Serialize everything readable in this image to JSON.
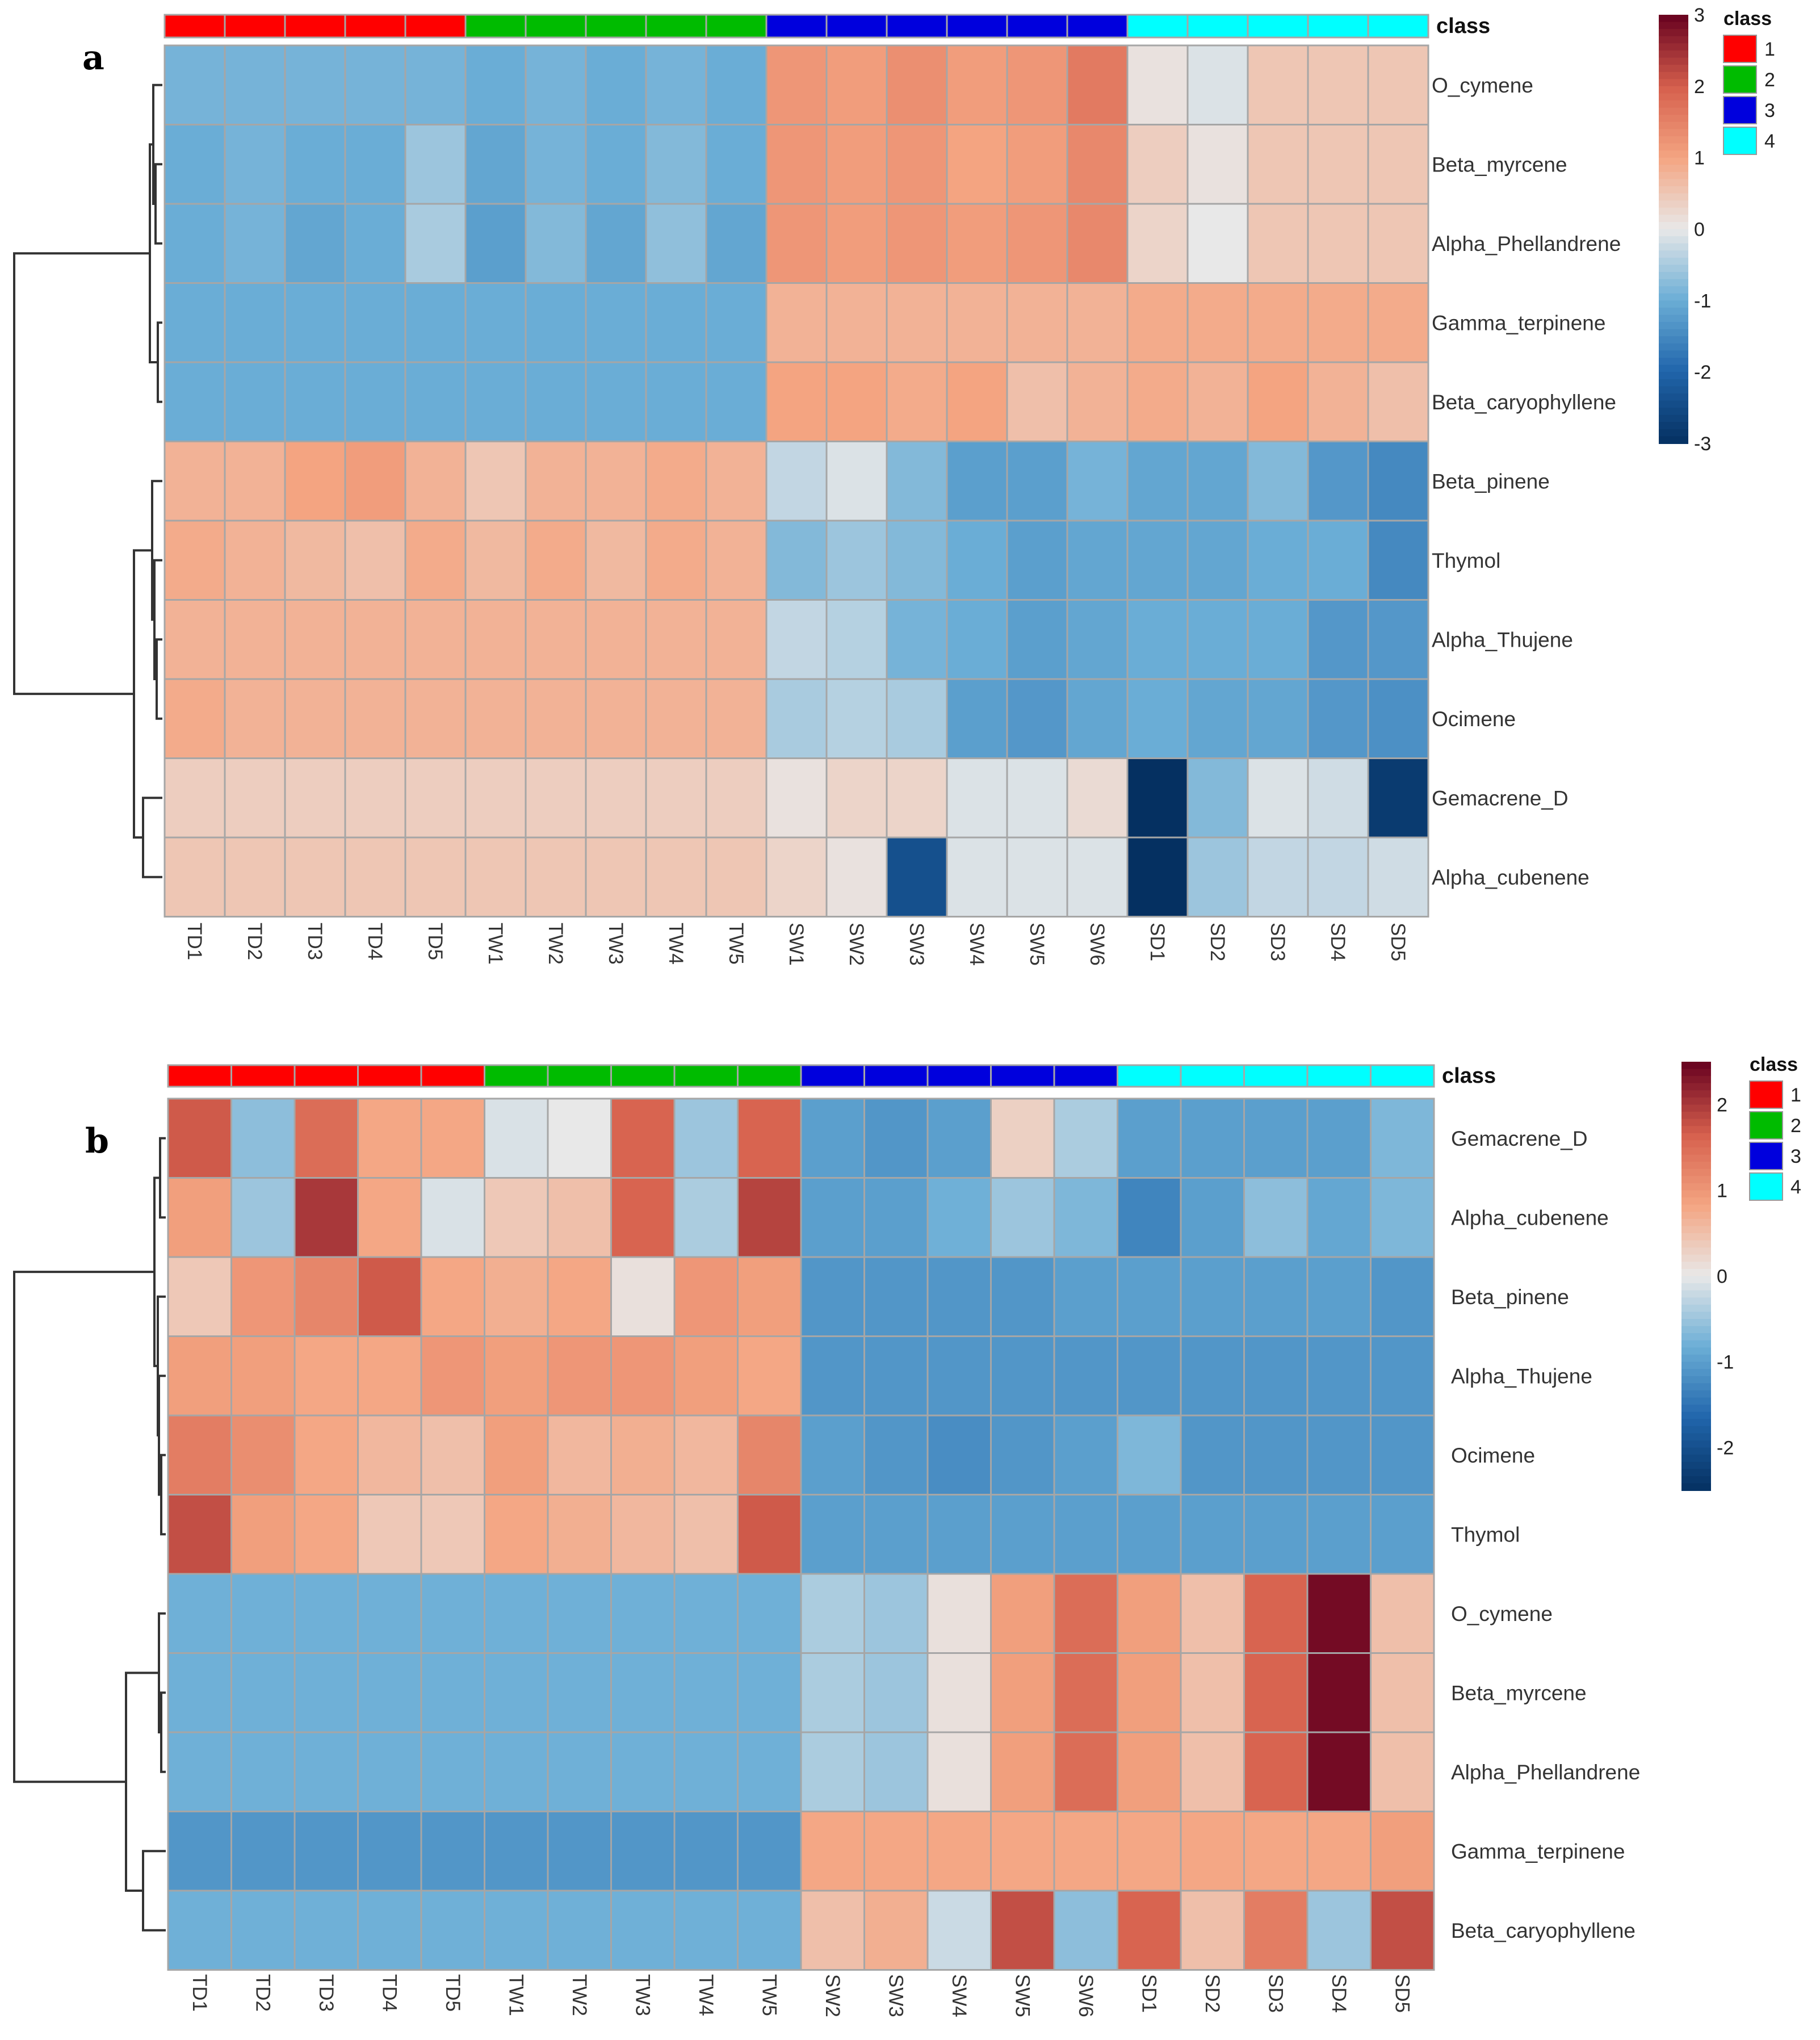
{
  "chart_data": [
    {
      "type": "heatmap",
      "panel": "a",
      "columns": [
        "TD1",
        "TD2",
        "TD3",
        "TD4",
        "TD5",
        "TW1",
        "TW2",
        "TW3",
        "TW4",
        "TW5",
        "SW1",
        "SW2",
        "SW3",
        "SW4",
        "SW5",
        "SW6",
        "SD1",
        "SD2",
        "SD3",
        "SD4",
        "SD5"
      ],
      "column_classes": [
        1,
        1,
        1,
        1,
        1,
        2,
        2,
        2,
        2,
        2,
        3,
        3,
        3,
        3,
        3,
        3,
        4,
        4,
        4,
        4,
        4
      ],
      "rows": [
        "O_cymene",
        "Beta_myrcene",
        "Alpha_Phellandrene",
        "Gamma_terpinene",
        "Beta_caryophyllene",
        "Beta_pinene",
        "Thymol",
        "Alpha_Thujene",
        "Ocimene",
        "Gemacrene_D",
        "Alpha_cubenene"
      ],
      "values": [
        [
          -0.9,
          -0.9,
          -0.9,
          -0.9,
          -0.9,
          -1.0,
          -0.9,
          -1.0,
          -0.9,
          -1.0,
          1.2,
          1.1,
          1.3,
          1.1,
          1.2,
          1.6,
          0.1,
          -0.1,
          0.5,
          0.5,
          0.5
        ],
        [
          -1.0,
          -0.9,
          -1.0,
          -1.0,
          -0.6,
          -1.1,
          -0.9,
          -1.0,
          -0.8,
          -1.0,
          1.2,
          1.1,
          1.2,
          1.0,
          1.1,
          1.4,
          0.4,
          0.1,
          0.5,
          0.5,
          0.5
        ],
        [
          -1.0,
          -0.9,
          -1.1,
          -1.0,
          -0.5,
          -1.2,
          -0.8,
          -1.1,
          -0.7,
          -1.1,
          1.2,
          1.1,
          1.2,
          1.1,
          1.2,
          1.4,
          0.3,
          0.0,
          0.5,
          0.5,
          0.5
        ],
        [
          -1.0,
          -1.0,
          -1.0,
          -1.0,
          -1.0,
          -1.0,
          -1.0,
          -1.0,
          -1.0,
          -1.0,
          0.8,
          0.8,
          0.8,
          0.8,
          0.8,
          0.8,
          0.9,
          0.9,
          0.9,
          0.9,
          0.9
        ],
        [
          -1.0,
          -1.0,
          -1.0,
          -1.0,
          -1.0,
          -1.0,
          -1.0,
          -1.0,
          -1.0,
          -1.0,
          1.0,
          1.0,
          0.9,
          1.0,
          0.6,
          0.8,
          0.9,
          0.8,
          1.0,
          0.8,
          0.6
        ],
        [
          0.8,
          0.8,
          1.0,
          1.1,
          0.8,
          0.5,
          0.8,
          0.8,
          0.9,
          0.8,
          -0.3,
          -0.1,
          -0.8,
          -1.2,
          -1.2,
          -0.9,
          -1.1,
          -1.1,
          -0.8,
          -1.3,
          -1.5
        ],
        [
          0.9,
          0.8,
          0.7,
          0.6,
          0.9,
          0.7,
          0.9,
          0.7,
          0.9,
          0.8,
          -0.8,
          -0.6,
          -0.8,
          -1.0,
          -1.2,
          -1.1,
          -1.1,
          -1.1,
          -1.0,
          -1.0,
          -1.5
        ],
        [
          0.8,
          0.8,
          0.8,
          0.8,
          0.8,
          0.8,
          0.8,
          0.8,
          0.8,
          0.8,
          -0.3,
          -0.4,
          -0.9,
          -1.0,
          -1.2,
          -1.1,
          -1.0,
          -1.0,
          -1.0,
          -1.3,
          -1.3
        ],
        [
          0.9,
          0.8,
          0.8,
          0.8,
          0.8,
          0.8,
          0.8,
          0.8,
          0.8,
          0.8,
          -0.5,
          -0.4,
          -0.5,
          -1.2,
          -1.3,
          -1.1,
          -1.0,
          -1.1,
          -1.1,
          -1.3,
          -1.4
        ],
        [
          0.4,
          0.4,
          0.4,
          0.4,
          0.4,
          0.4,
          0.4,
          0.4,
          0.4,
          0.4,
          0.1,
          0.3,
          0.3,
          -0.1,
          -0.1,
          0.2,
          -3.0,
          -0.8,
          -0.1,
          -0.2,
          -2.8
        ],
        [
          0.5,
          0.5,
          0.5,
          0.5,
          0.5,
          0.5,
          0.5,
          0.5,
          0.5,
          0.5,
          0.3,
          0.1,
          -2.4,
          -0.1,
          -0.1,
          -0.1,
          -3.2,
          -0.6,
          -0.3,
          -0.3,
          -0.2
        ]
      ],
      "colorbar": {
        "min": -3,
        "max": 3,
        "ticks": [
          3,
          2,
          1,
          0,
          -1,
          -2,
          -3
        ]
      },
      "legend": {
        "title": "class",
        "entries": [
          "1",
          "2",
          "3",
          "4"
        ]
      },
      "class_label": "class"
    },
    {
      "type": "heatmap",
      "panel": "b",
      "columns": [
        "TD1",
        "TD2",
        "TD3",
        "TD4",
        "TD5",
        "TW1",
        "TW2",
        "TW3",
        "TW4",
        "TW5",
        "SW2",
        "SW3",
        "SW4",
        "SW5",
        "SW6",
        "SD1",
        "SD2",
        "SD3",
        "SD4",
        "SD5"
      ],
      "column_classes": [
        1,
        1,
        1,
        1,
        1,
        2,
        2,
        2,
        2,
        2,
        3,
        3,
        3,
        3,
        3,
        4,
        4,
        4,
        4,
        4
      ],
      "rows": [
        "Gemacrene_D",
        "Alpha_cubenene",
        "Beta_pinene",
        "Alpha_Thujene",
        "Ocimene",
        "Thymol",
        "O_cymene",
        "Beta_myrcene",
        "Alpha_Phellandrene",
        "Gamma_terpinene",
        "Beta_caryophyllene"
      ],
      "values": [
        [
          1.7,
          -0.6,
          1.5,
          0.8,
          0.8,
          -0.1,
          0.0,
          1.6,
          -0.5,
          1.6,
          -1.0,
          -1.1,
          -1.0,
          0.3,
          -0.4,
          -1.0,
          -1.0,
          -1.0,
          -1.0,
          -0.7
        ],
        [
          0.9,
          -0.5,
          2.0,
          0.8,
          -0.1,
          0.4,
          0.5,
          1.6,
          -0.4,
          1.9,
          -1.0,
          -1.0,
          -0.8,
          -0.5,
          -0.7,
          -1.3,
          -1.0,
          -0.6,
          -0.9,
          -0.7
        ],
        [
          0.4,
          1.0,
          1.2,
          1.7,
          0.8,
          0.7,
          0.8,
          0.1,
          1.0,
          0.9,
          -1.1,
          -1.1,
          -1.1,
          -1.1,
          -1.0,
          -1.0,
          -1.0,
          -1.0,
          -1.0,
          -1.1
        ],
        [
          0.9,
          0.9,
          0.8,
          0.8,
          1.0,
          0.9,
          1.0,
          1.0,
          0.9,
          0.8,
          -1.1,
          -1.1,
          -1.1,
          -1.1,
          -1.1,
          -1.1,
          -1.1,
          -1.1,
          -1.1,
          -1.1
        ],
        [
          1.3,
          1.1,
          0.8,
          0.6,
          0.5,
          0.9,
          0.6,
          0.7,
          0.6,
          1.2,
          -1.0,
          -1.1,
          -1.2,
          -1.1,
          -1.0,
          -0.7,
          -1.1,
          -1.1,
          -1.1,
          -1.1
        ],
        [
          1.8,
          0.9,
          0.8,
          0.4,
          0.4,
          0.8,
          0.7,
          0.6,
          0.5,
          1.7,
          -1.0,
          -1.0,
          -1.0,
          -1.0,
          -1.0,
          -1.0,
          -1.0,
          -1.0,
          -1.0,
          -1.0
        ],
        [
          -0.8,
          -0.8,
          -0.8,
          -0.8,
          -0.8,
          -0.8,
          -0.8,
          -0.8,
          -0.8,
          -0.8,
          -0.4,
          -0.5,
          0.1,
          0.9,
          1.5,
          0.9,
          0.5,
          1.6,
          2.4,
          0.5
        ],
        [
          -0.8,
          -0.8,
          -0.8,
          -0.8,
          -0.8,
          -0.8,
          -0.8,
          -0.8,
          -0.8,
          -0.8,
          -0.4,
          -0.5,
          0.1,
          0.9,
          1.5,
          0.9,
          0.5,
          1.6,
          2.4,
          0.5
        ],
        [
          -0.8,
          -0.8,
          -0.8,
          -0.8,
          -0.8,
          -0.8,
          -0.8,
          -0.8,
          -0.8,
          -0.8,
          -0.4,
          -0.5,
          0.1,
          0.9,
          1.5,
          0.9,
          0.5,
          1.6,
          2.4,
          0.5
        ],
        [
          -1.1,
          -1.1,
          -1.1,
          -1.1,
          -1.1,
          -1.1,
          -1.1,
          -1.1,
          -1.1,
          -1.1,
          0.8,
          0.8,
          0.8,
          0.8,
          0.8,
          0.8,
          0.8,
          0.8,
          0.8,
          0.9
        ],
        [
          -0.8,
          -0.8,
          -0.8,
          -0.8,
          -0.8,
          -0.8,
          -0.8,
          -0.8,
          -0.8,
          -0.8,
          0.5,
          0.7,
          -0.2,
          1.8,
          -0.6,
          1.6,
          0.5,
          1.3,
          -0.5,
          1.8
        ]
      ],
      "colorbar": {
        "min": -2.5,
        "max": 2.5,
        "ticks": [
          2,
          1,
          0,
          -1,
          -2
        ]
      },
      "legend": {
        "title": "class",
        "entries": [
          "1",
          "2",
          "3",
          "4"
        ]
      },
      "class_label": "class"
    }
  ],
  "colors": {
    "class_1": "#ff0000",
    "class_2": "#00bb00",
    "class_3": "#0000dd",
    "class_4": "#00ffff",
    "grid": "#a6a6a6",
    "dendrogram": "#333333"
  }
}
